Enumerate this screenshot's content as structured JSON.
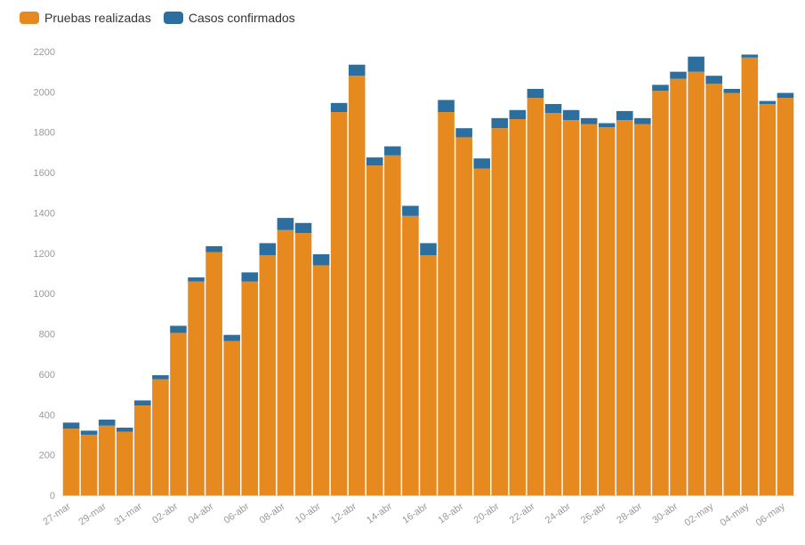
{
  "colors": {
    "tests": "#e6891e",
    "confirmed": "#2c6f9e",
    "axis_text": "#999999",
    "grid": "#e8e8e8"
  },
  "chart_data": {
    "type": "bar",
    "stacked": true,
    "ylim": [
      0,
      2200
    ],
    "yticks": [
      0,
      200,
      400,
      600,
      800,
      1000,
      1200,
      1400,
      1600,
      1800,
      2000,
      2200
    ],
    "xticks": [
      "27-mar",
      "29-mar",
      "31-mar",
      "02-abr",
      "04-abr",
      "06-abr",
      "08-abr",
      "10-abr",
      "12-abr",
      "14-abr",
      "16-abr",
      "18-abr",
      "20-abr",
      "22-abr",
      "24-abr",
      "26-abr",
      "28-abr",
      "30-abr",
      "02-may",
      "04-may",
      "06-may"
    ],
    "legend_position": "top-left",
    "grid": false,
    "categories": [
      "27-mar",
      "28-mar",
      "29-mar",
      "30-mar",
      "31-mar",
      "01-abr",
      "02-abr",
      "03-abr",
      "04-abr",
      "05-abr",
      "06-abr",
      "07-abr",
      "08-abr",
      "09-abr",
      "10-abr",
      "11-abr",
      "12-abr",
      "13-abr",
      "14-abr",
      "15-abr",
      "16-abr",
      "17-abr",
      "18-abr",
      "19-abr",
      "20-abr",
      "21-abr",
      "22-abr",
      "23-abr",
      "24-abr",
      "25-abr",
      "26-abr",
      "27-abr",
      "28-abr",
      "29-abr",
      "30-abr",
      "01-may",
      "02-may",
      "03-may",
      "04-may",
      "05-may",
      "06-may"
    ],
    "series": [
      {
        "name": "Pruebas realizadas",
        "values": [
          330,
          300,
          345,
          315,
          445,
          575,
          805,
          1060,
          1205,
          765,
          1060,
          1190,
          1315,
          1300,
          1140,
          1900,
          2080,
          1635,
          1685,
          1385,
          1190,
          1900,
          1775,
          1620,
          1820,
          1865,
          1970,
          1895,
          1860,
          1840,
          1825,
          1860,
          1840,
          2005,
          2065,
          2100,
          2040,
          1995,
          2170,
          1940,
          1970
        ]
      },
      {
        "name": "Casos confirmados",
        "values": [
          30,
          20,
          30,
          20,
          25,
          20,
          35,
          20,
          30,
          30,
          45,
          60,
          60,
          50,
          55,
          45,
          55,
          40,
          45,
          50,
          60,
          60,
          45,
          50,
          50,
          45,
          45,
          45,
          50,
          30,
          20,
          45,
          30,
          30,
          35,
          75,
          40,
          20,
          15,
          15,
          25
        ]
      }
    ]
  }
}
